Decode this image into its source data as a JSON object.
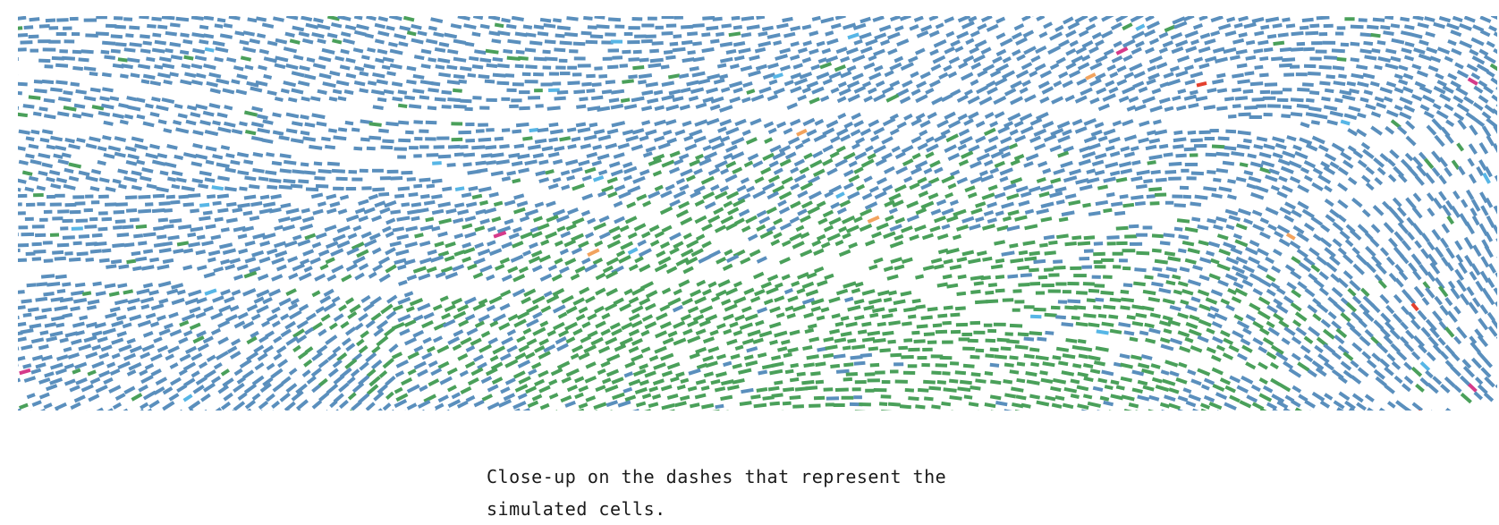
{
  "figure": {
    "icon": "simulation-dash-field-image",
    "colors": {
      "background": "#ffffff",
      "blue_cell": "#5a8fbd",
      "green_cell": "#4aa05a",
      "light_blue_cell": "#57b6e6",
      "magenta_cell": "#d63a8a",
      "red_cell": "#e4402e",
      "orange_cell": "#f2a35e"
    }
  },
  "caption": {
    "text": "Close-up on the dashes that represent the simulated cells."
  }
}
